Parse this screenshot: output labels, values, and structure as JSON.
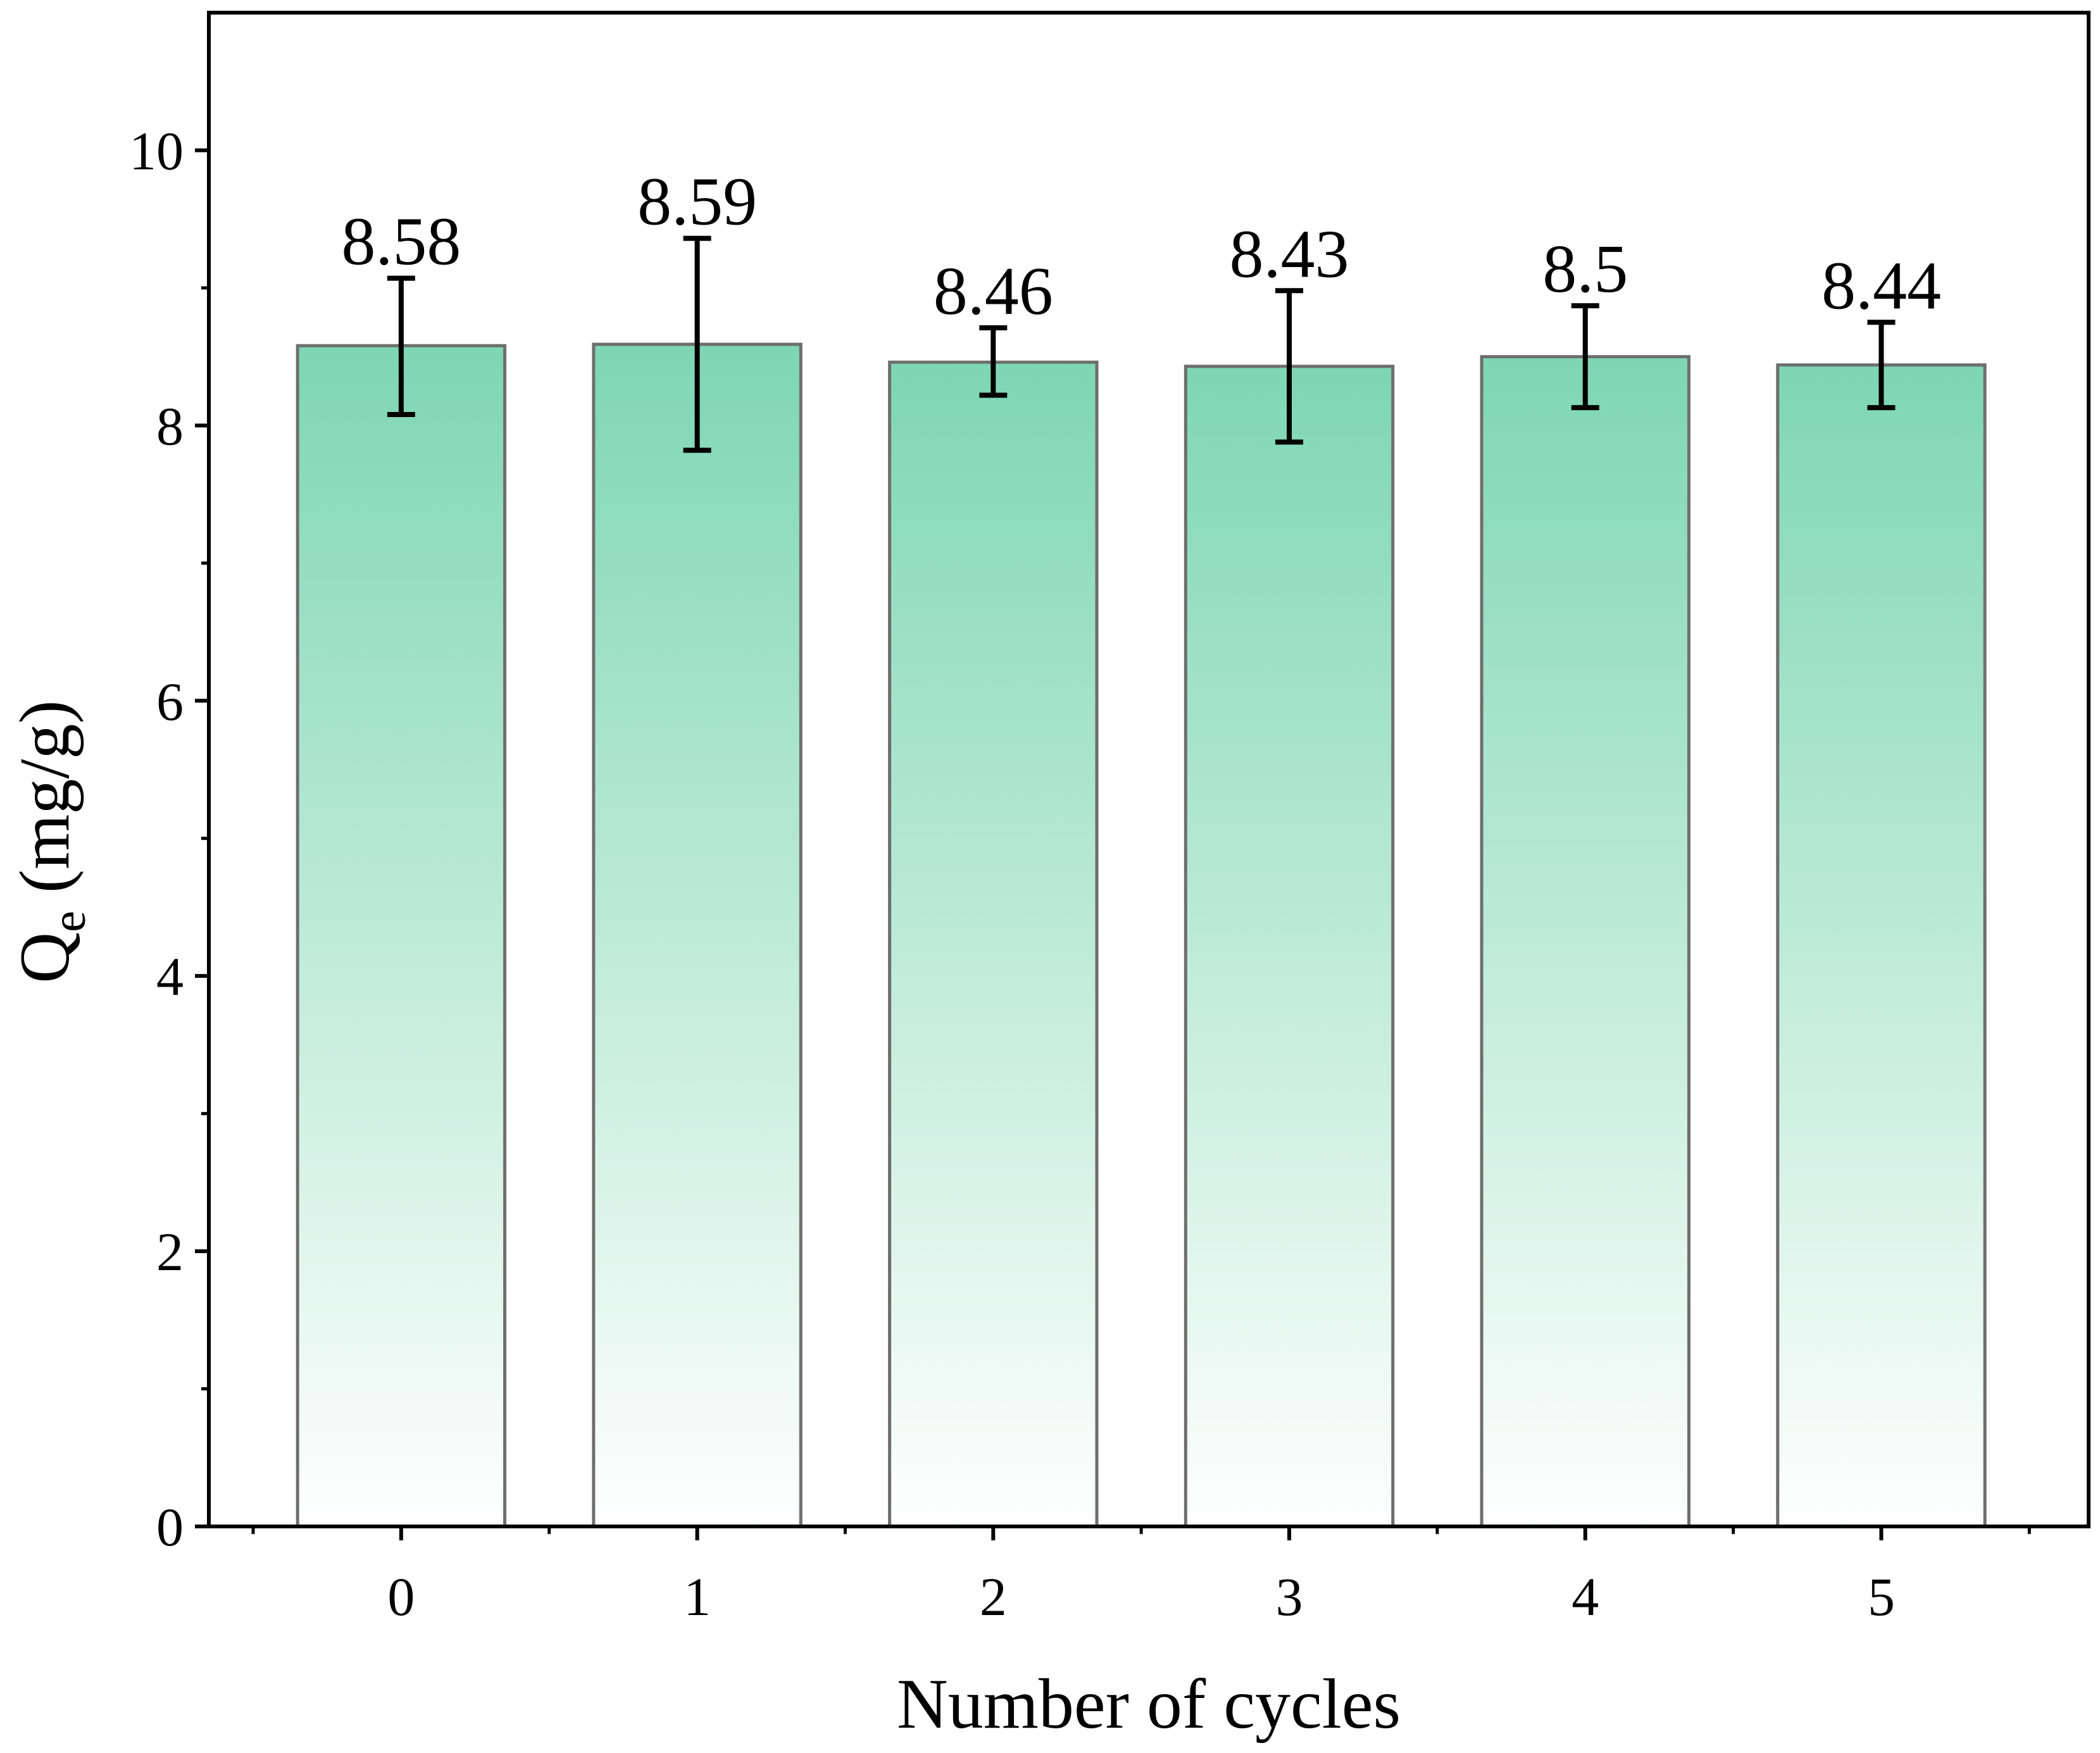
{
  "chart_data": {
    "type": "bar",
    "title": "",
    "xlabel": "Number of cycles",
    "ylabel": {
      "main": "Q",
      "subscript": "e",
      "unit": " (mg/g)"
    },
    "categories": [
      "0",
      "1",
      "2",
      "3",
      "4",
      "5"
    ],
    "values": [
      8.58,
      8.59,
      8.46,
      8.43,
      8.5,
      8.44
    ],
    "value_labels": [
      "8.58",
      "8.59",
      "8.46",
      "8.43",
      "8.5",
      "8.44"
    ],
    "error_bars": {
      "upper": [
        9.07,
        9.36,
        8.71,
        8.98,
        8.87,
        8.75
      ],
      "lower": [
        8.08,
        7.82,
        8.22,
        7.88,
        8.13,
        8.13
      ]
    },
    "ylim": [
      0,
      11
    ],
    "yticks": [
      0,
      2,
      4,
      6,
      8,
      10
    ],
    "ytick_labels": [
      "0",
      "2",
      "4",
      "6",
      "8",
      "10"
    ],
    "yminor_ticks": [
      1,
      3,
      5,
      7,
      9
    ],
    "grid": false,
    "legend": "none",
    "colors": {
      "bar_top": "#7dd6b4",
      "bar_bottom": "#ffffff",
      "bar_edge": "#6e6e6e",
      "error_bar": "#000000",
      "axis": "#000000"
    }
  }
}
